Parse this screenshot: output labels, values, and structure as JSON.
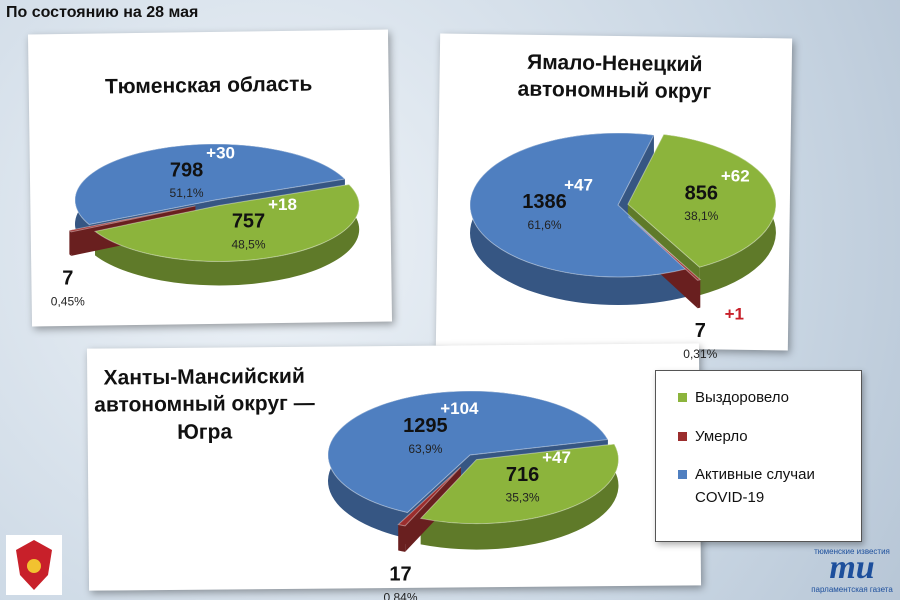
{
  "header": "По состоянию на 28 мая",
  "legend": [
    {
      "name": "Выздоровело",
      "color": "#8cb43c"
    },
    {
      "name": "Умерло",
      "color": "#9b2d2d"
    },
    {
      "name": "Активные случаи COVID-19",
      "color": "#4f7fc0"
    }
  ],
  "chart_data": [
    {
      "type": "pie",
      "title": "Тюменская область",
      "values": [
        757,
        7,
        798
      ],
      "percentages": [
        48.5,
        0.45,
        51.1
      ],
      "percentage_labels": [
        "48,5%",
        "0,45%",
        "51,1%"
      ],
      "increments": [
        18,
        null,
        30
      ],
      "increment_labels": [
        "+18",
        null,
        "+30"
      ]
    },
    {
      "type": "pie",
      "title": "Ямало-Ненецкий автономный округ",
      "values": [
        856,
        7,
        1386
      ],
      "percentages": [
        38.1,
        0.31,
        61.6
      ],
      "percentage_labels": [
        "38,1%",
        "0,31%",
        "61,6%"
      ],
      "increments": [
        62,
        1,
        47
      ],
      "increment_labels": [
        "+62",
        "+1",
        "+47"
      ]
    },
    {
      "type": "pie",
      "title": "Ханты-Мансийский автономный округ — Югра",
      "values": [
        716,
        17,
        1295
      ],
      "percentages": [
        35.3,
        0.84,
        63.9
      ],
      "percentage_labels": [
        "35,3%",
        "0,84%",
        "63,9%"
      ],
      "increments": [
        47,
        null,
        104
      ],
      "increment_labels": [
        "+47",
        null,
        "+104"
      ]
    }
  ],
  "logo": {
    "top": "тюменские известия",
    "mark": "ти",
    "bottom": "парламентская газета"
  }
}
